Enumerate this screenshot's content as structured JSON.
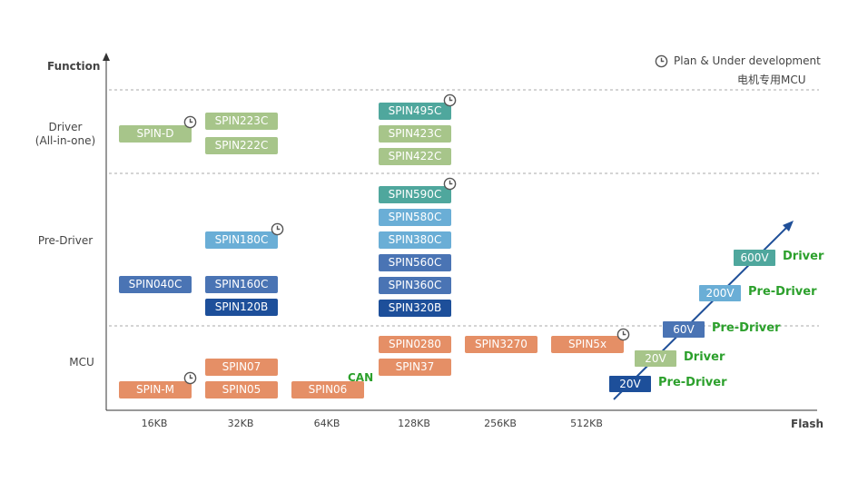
{
  "axes": {
    "y_title": "Function",
    "x_title": "Flash",
    "rows": [
      {
        "label": "Driver\n(All-in-one)"
      },
      {
        "label": "Pre-Driver"
      },
      {
        "label": "MCU"
      }
    ],
    "x_ticks": [
      "16KB",
      "32KB",
      "64KB",
      "128KB",
      "256KB",
      "512KB"
    ]
  },
  "legend": {
    "icon": "clock-icon",
    "plan_label": "Plan & Under development",
    "subtitle": "电机专用MCU"
  },
  "colors": {
    "green": "#a7c58a",
    "teal": "#4fa79d",
    "light_blue": "#6aaed6",
    "mid_blue": "#4a74b4",
    "dark_blue": "#1d4f9a",
    "orange": "#e58f66",
    "label_green": "#2ca02c",
    "arrow": "#1f4f98"
  },
  "chips": [
    {
      "label": "SPIN-D",
      "col": 0,
      "row": "driver",
      "color": "green",
      "plan": true
    },
    {
      "label": "SPIN223C",
      "col": 1,
      "row": "driver",
      "color": "green",
      "plan": false
    },
    {
      "label": "SPIN222C",
      "col": 1,
      "row": "driver",
      "color": "green",
      "plan": false
    },
    {
      "label": "SPIN495C",
      "col": 3,
      "row": "driver",
      "color": "teal",
      "plan": true
    },
    {
      "label": "SPIN423C",
      "col": 3,
      "row": "driver",
      "color": "green",
      "plan": false
    },
    {
      "label": "SPIN422C",
      "col": 3,
      "row": "driver",
      "color": "green",
      "plan": false
    },
    {
      "label": "SPIN180C",
      "col": 1,
      "row": "pre-driver",
      "color": "light_blue",
      "plan": true
    },
    {
      "label": "SPIN040C",
      "col": 0,
      "row": "pre-driver",
      "color": "mid_blue",
      "plan": false
    },
    {
      "label": "SPIN160C",
      "col": 1,
      "row": "pre-driver",
      "color": "mid_blue",
      "plan": false
    },
    {
      "label": "SPIN120B",
      "col": 1,
      "row": "pre-driver",
      "color": "dark_blue",
      "plan": false
    },
    {
      "label": "SPIN590C",
      "col": 3,
      "row": "pre-driver",
      "color": "teal",
      "plan": true
    },
    {
      "label": "SPIN580C",
      "col": 3,
      "row": "pre-driver",
      "color": "light_blue",
      "plan": false
    },
    {
      "label": "SPIN380C",
      "col": 3,
      "row": "pre-driver",
      "color": "light_blue",
      "plan": false
    },
    {
      "label": "SPIN560C",
      "col": 3,
      "row": "pre-driver",
      "color": "mid_blue",
      "plan": false
    },
    {
      "label": "SPIN360C",
      "col": 3,
      "row": "pre-driver",
      "color": "mid_blue",
      "plan": false
    },
    {
      "label": "SPIN320B",
      "col": 3,
      "row": "pre-driver",
      "color": "dark_blue",
      "plan": false
    },
    {
      "label": "SPIN0280",
      "col": 3,
      "row": "mcu",
      "color": "orange",
      "plan": false
    },
    {
      "label": "SPIN37",
      "col": 3,
      "row": "mcu",
      "color": "orange",
      "plan": false
    },
    {
      "label": "SPIN3270",
      "col": 4,
      "row": "mcu",
      "color": "orange",
      "plan": false
    },
    {
      "label": "SPIN5x",
      "col": 5,
      "row": "mcu",
      "color": "orange",
      "plan": true
    },
    {
      "label": "SPIN07",
      "col": 1,
      "row": "mcu",
      "color": "orange",
      "plan": false
    },
    {
      "label": "SPIN-M",
      "col": 0,
      "row": "mcu",
      "color": "orange",
      "plan": true
    },
    {
      "label": "SPIN05",
      "col": 1,
      "row": "mcu",
      "color": "orange",
      "plan": false
    },
    {
      "label": "SPIN06",
      "col": 2,
      "row": "mcu",
      "color": "orange",
      "plan": false
    }
  ],
  "can_label": "CAN",
  "voltage_ladder": [
    {
      "voltage": "600V",
      "type": "Driver",
      "color": "teal"
    },
    {
      "voltage": "200V",
      "type": "Pre-Driver",
      "color": "light_blue"
    },
    {
      "voltage": "60V",
      "type": "Pre-Driver",
      "color": "mid_blue"
    },
    {
      "voltage": "20V",
      "type": "Driver",
      "color": "green"
    },
    {
      "voltage": "20V",
      "type": "Pre-Driver",
      "color": "dark_blue"
    }
  ]
}
